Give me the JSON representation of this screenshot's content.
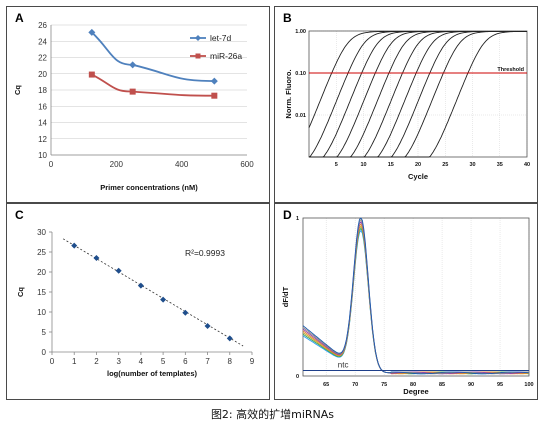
{
  "caption": "图2: 高效的扩增miRNAs",
  "panel_a": {
    "label": "A",
    "chart_data": {
      "type": "line",
      "xlabel": "Primer concentrations (nM)",
      "ylabel": "Cq",
      "xlim": [
        0,
        600
      ],
      "ylim": [
        10,
        26
      ],
      "xticks": [
        0,
        200,
        400,
        600
      ],
      "yticks": [
        10,
        12,
        14,
        16,
        18,
        20,
        22,
        24,
        26
      ],
      "legend_position": "top-right",
      "series": [
        {
          "name": "let-7d",
          "color": "#4f81bd",
          "marker": "diamond",
          "x": [
            125,
            250,
            500
          ],
          "y": [
            25.1,
            21.1,
            19.1
          ]
        },
        {
          "name": "miR-26a",
          "color": "#c0504d",
          "marker": "square",
          "x": [
            125,
            250,
            500
          ],
          "y": [
            19.9,
            17.8,
            17.3
          ]
        }
      ]
    }
  },
  "panel_b": {
    "label": "B",
    "chart_data": {
      "type": "line",
      "xlabel": "Cycle",
      "ylabel": "Norm. Fluoro.",
      "xlim": [
        0,
        40
      ],
      "yscale": "log",
      "ylim": [
        0.001,
        1.0
      ],
      "xticks": [
        5,
        10,
        15,
        20,
        25,
        30,
        35,
        40
      ],
      "ytick_labels": [
        "1.00",
        "0.10",
        "0.01"
      ],
      "ytick_values": [
        1.0,
        0.1,
        0.01
      ],
      "threshold": {
        "label": "Threshold",
        "value": 0.1,
        "color": "#cc0000"
      },
      "series_ct": [
        3,
        6,
        8.5,
        11,
        13.5,
        16,
        18.5,
        21,
        23.5,
        28
      ]
    }
  },
  "panel_c": {
    "label": "C",
    "chart_data": {
      "type": "scatter",
      "xlabel": "log(number of templates)",
      "ylabel": "Cq",
      "xlim": [
        0,
        9
      ],
      "ylim": [
        0,
        30
      ],
      "xticks": [
        0,
        1,
        2,
        3,
        4,
        5,
        6,
        7,
        8,
        9
      ],
      "yticks": [
        0,
        5,
        10,
        15,
        20,
        25,
        30
      ],
      "annotation": "R²=0.9993",
      "x": [
        1,
        2,
        3,
        4,
        5,
        6,
        7,
        8
      ],
      "y": [
        26.6,
        23.5,
        20.3,
        16.6,
        13.1,
        9.8,
        6.5,
        3.4
      ],
      "trendline": {
        "x": [
          0.5,
          8.6
        ],
        "y": [
          28.3,
          1.5
        ]
      }
    }
  },
  "panel_d": {
    "label": "D",
    "chart_data": {
      "type": "line",
      "xlabel": "Degree",
      "ylabel": "dF/dT",
      "xlim": [
        61,
        100
      ],
      "ylim": [
        0,
        1
      ],
      "xticks": [
        65,
        70,
        75,
        80,
        85,
        90,
        95,
        100
      ],
      "ytick_labels": [
        "1",
        "0"
      ],
      "ytick_values": [
        1,
        0
      ],
      "peak_degree": 71,
      "annotation": "ntc",
      "series_colors": [
        "#2a9df4",
        "#3aa655",
        "#c9a227",
        "#e07b39",
        "#8e44ad",
        "#888888",
        "#1e5bb0"
      ]
    }
  }
}
